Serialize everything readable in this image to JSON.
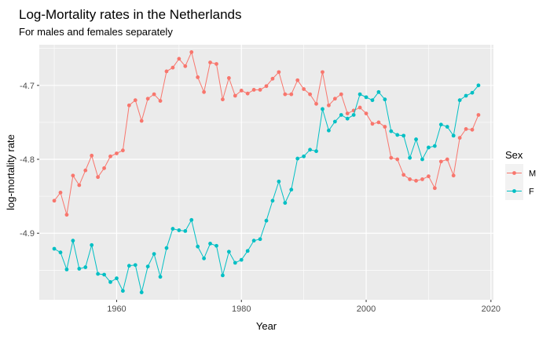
{
  "chart_data": {
    "type": "line",
    "title": "Log-Mortality rates in the Netherlands",
    "subtitle": "For males and females separately",
    "xlabel": "Year",
    "ylabel": "log-mortality rate",
    "xlim": [
      1947.6,
      2020.4
    ],
    "ylim": [
      -4.99,
      -4.645
    ],
    "x_ticks": [
      1960,
      1980,
      2000,
      2020
    ],
    "y_ticks": [
      -4.9,
      -4.8,
      -4.7
    ],
    "grid": true,
    "legend": {
      "title": "Sex",
      "position": "right"
    },
    "x": [
      1950,
      1951,
      1952,
      1953,
      1954,
      1955,
      1956,
      1957,
      1958,
      1959,
      1960,
      1961,
      1962,
      1963,
      1964,
      1965,
      1966,
      1967,
      1968,
      1969,
      1970,
      1971,
      1972,
      1973,
      1974,
      1975,
      1976,
      1977,
      1978,
      1979,
      1980,
      1981,
      1982,
      1983,
      1984,
      1985,
      1986,
      1987,
      1988,
      1989,
      1990,
      1991,
      1992,
      1993,
      1994,
      1995,
      1996,
      1997,
      1998,
      1999,
      2000,
      2001,
      2002,
      2003,
      2004,
      2005,
      2006,
      2007,
      2008,
      2009,
      2010,
      2011,
      2012,
      2013,
      2014,
      2015,
      2016,
      2017,
      2018
    ],
    "series": [
      {
        "name": "M",
        "color": "#F8766D",
        "values": [
          -4.856,
          -4.845,
          -4.875,
          -4.822,
          -4.835,
          -4.815,
          -4.795,
          -4.824,
          -4.812,
          -4.796,
          -4.792,
          -4.788,
          -4.727,
          -4.72,
          -4.748,
          -4.718,
          -4.712,
          -4.721,
          -4.681,
          -4.676,
          -4.664,
          -4.674,
          -4.655,
          -4.689,
          -4.709,
          -4.669,
          -4.671,
          -4.719,
          -4.69,
          -4.714,
          -4.707,
          -4.711,
          -4.706,
          -4.706,
          -4.701,
          -4.691,
          -4.682,
          -4.712,
          -4.712,
          -4.693,
          -4.705,
          -4.712,
          -4.725,
          -4.682,
          -4.727,
          -4.718,
          -4.712,
          -4.738,
          -4.734,
          -4.73,
          -4.738,
          -4.752,
          -4.75,
          -4.756,
          -4.798,
          -4.8,
          -4.821,
          -4.827,
          -4.829,
          -4.827,
          -4.823,
          -4.839,
          -4.803,
          -4.8,
          -4.822,
          -4.771,
          -4.759,
          -4.76,
          -4.74
        ]
      },
      {
        "name": "F",
        "color": "#00BFC4",
        "values": [
          -4.921,
          -4.926,
          -4.949,
          -4.91,
          -4.948,
          -4.946,
          -4.916,
          -4.955,
          -4.956,
          -4.966,
          -4.961,
          -4.978,
          -4.944,
          -4.943,
          -4.98,
          -4.945,
          -4.928,
          -4.959,
          -4.92,
          -4.894,
          -4.896,
          -4.897,
          -4.882,
          -4.918,
          -4.934,
          -4.914,
          -4.917,
          -4.957,
          -4.925,
          -4.94,
          -4.936,
          -4.924,
          -4.91,
          -4.908,
          -4.883,
          -4.856,
          -4.83,
          -4.859,
          -4.841,
          -4.799,
          -4.796,
          -4.787,
          -4.789,
          -4.732,
          -4.761,
          -4.749,
          -4.74,
          -4.745,
          -4.74,
          -4.712,
          -4.716,
          -4.72,
          -4.709,
          -4.719,
          -4.762,
          -4.767,
          -4.768,
          -4.798,
          -4.773,
          -4.8,
          -4.784,
          -4.782,
          -4.753,
          -4.756,
          -4.768,
          -4.72,
          -4.714,
          -4.71,
          -4.7
        ]
      }
    ]
  }
}
